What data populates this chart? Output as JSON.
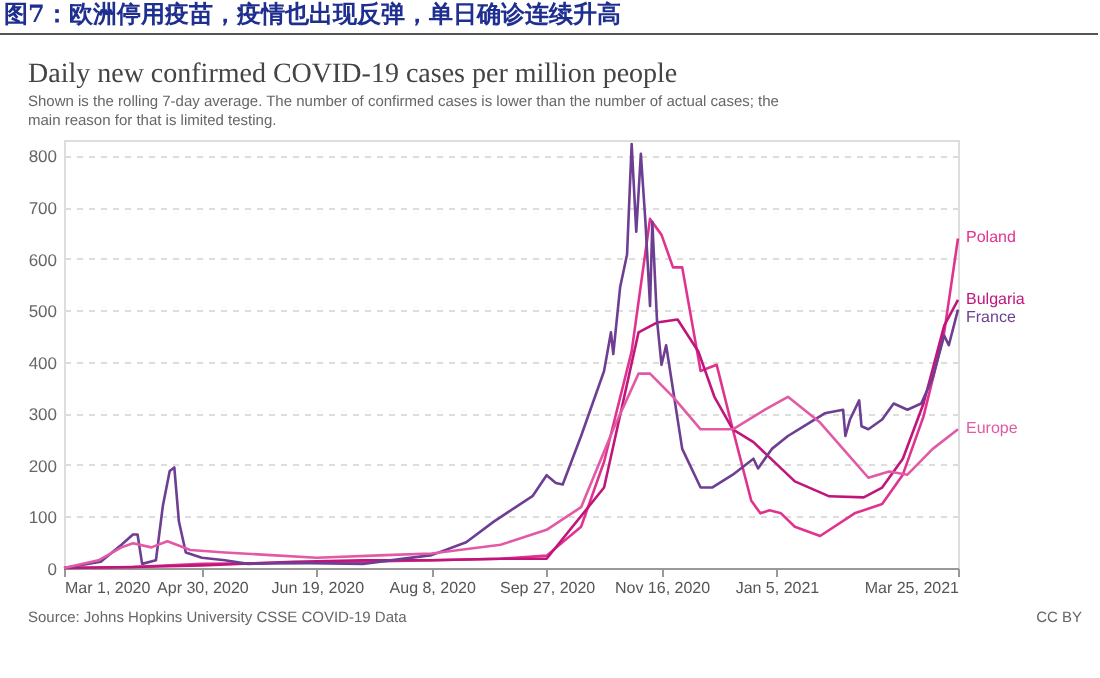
{
  "chart_data": {
    "type": "line",
    "title": "图7：欧洲停用疫苗，疫情也出现反弹，单日确诊连续升高",
    "subtitle": "Daily new confirmed COVID-19 cases per million people",
    "annotations": [
      "Shown is the rolling 7-day average. The number of confirmed cases is lower than the number of actual cases; the main reason for that is limited testing.",
      "Source: Johns Hopkins University CSSE COVID-19 Data",
      "CC BY"
    ],
    "xlim": [
      "2020-03-01",
      "2021-03-25"
    ],
    "xticks": [
      {
        "value": "2020-03-01",
        "label": "Mar 1, 2020"
      },
      {
        "value": "2020-04-30",
        "label": "Apr 30, 2020"
      },
      {
        "value": "2020-06-19",
        "label": "Jun 19, 2020"
      },
      {
        "value": "2020-08-08",
        "label": "Aug 8, 2020"
      },
      {
        "value": "2020-09-27",
        "label": "Sep 27, 2020"
      },
      {
        "value": "2020-11-16",
        "label": "Nov 16, 2020"
      },
      {
        "value": "2021-01-05",
        "label": "Jan 5, 2021"
      },
      {
        "value": "2021-03-25",
        "label": "Mar 25, 2021"
      }
    ],
    "ylim": [
      0,
      830
    ],
    "yticks": [
      0,
      100,
      200,
      300,
      400,
      500,
      600,
      700,
      800
    ],
    "grid": "y",
    "series": [
      {
        "name": "Poland",
        "color": "#e0338f",
        "x": [
          "2020-03-01",
          "2020-03-31",
          "2020-04-30",
          "2020-06-09",
          "2020-07-09",
          "2020-08-08",
          "2020-09-07",
          "2020-09-27",
          "2020-10-12",
          "2020-10-22",
          "2020-11-03",
          "2020-11-11",
          "2020-11-16",
          "2020-11-21",
          "2020-11-25",
          "2020-12-03",
          "2020-12-10",
          "2020-12-17",
          "2020-12-25",
          "2020-12-29",
          "2021-01-02",
          "2021-01-07",
          "2021-01-13",
          "2021-01-24",
          "2021-02-08",
          "2021-02-20",
          "2021-03-01",
          "2021-03-10",
          "2021-03-19",
          "2021-03-25"
        ],
        "values": [
          0,
          2,
          8,
          10,
          12,
          15,
          18,
          24,
          80,
          206,
          420,
          677,
          646,
          583,
          583,
          382,
          394,
          269,
          131,
          106,
          112,
          106,
          80,
          62,
          106,
          124,
          181,
          294,
          457,
          639
        ]
      },
      {
        "name": "Bulgaria",
        "color": "#c0157b",
        "x": [
          "2020-03-01",
          "2020-03-31",
          "2020-04-30",
          "2020-06-09",
          "2020-07-09",
          "2020-08-08",
          "2020-09-07",
          "2020-09-27",
          "2020-10-22",
          "2020-11-06",
          "2020-11-14",
          "2020-11-23",
          "2020-12-02",
          "2020-12-09",
          "2020-12-17",
          "2020-12-26",
          "2021-01-13",
          "2021-01-28",
          "2021-02-12",
          "2021-02-20",
          "2021-03-01",
          "2021-03-10",
          "2021-03-19",
          "2021-03-25"
        ],
        "values": [
          0,
          2,
          5,
          12,
          15,
          15,
          18,
          18,
          156,
          457,
          476,
          482,
          420,
          332,
          269,
          244,
          168,
          139,
          137,
          156,
          212,
          319,
          470,
          520
        ]
      },
      {
        "name": "France",
        "color": "#6d3e91",
        "x": [
          "2020-03-01",
          "2020-03-17",
          "2020-03-26",
          "2020-03-31",
          "2020-04-02",
          "2020-04-04",
          "2020-04-10",
          "2020-04-13",
          "2020-04-16",
          "2020-04-18",
          "2020-04-20",
          "2020-04-23",
          "2020-04-30",
          "2020-05-10",
          "2020-05-20",
          "2020-06-09",
          "2020-07-09",
          "2020-08-08",
          "2020-08-23",
          "2020-09-04",
          "2020-09-21",
          "2020-09-27",
          "2020-10-01",
          "2020-10-04",
          "2020-10-12",
          "2020-10-22",
          "2020-10-25",
          "2020-10-26",
          "2020-10-29",
          "2020-11-01",
          "2020-11-03",
          "2020-11-05",
          "2020-11-07",
          "2020-11-09",
          "2020-11-11",
          "2020-11-12",
          "2020-11-14",
          "2020-11-16",
          "2020-11-18",
          "2020-11-25",
          "2020-12-03",
          "2020-12-08",
          "2020-12-17",
          "2020-12-26",
          "2020-12-28",
          "2021-01-03",
          "2021-01-10",
          "2021-01-17",
          "2021-01-26",
          "2021-02-03",
          "2021-02-04",
          "2021-02-06",
          "2021-02-10",
          "2021-02-11",
          "2021-02-14",
          "2021-02-20",
          "2021-02-25",
          "2021-03-03",
          "2021-03-09",
          "2021-03-14",
          "2021-03-19",
          "2021-03-21",
          "2021-03-25"
        ],
        "values": [
          0,
          12,
          45,
          65,
          65,
          8,
          15,
          120,
          188,
          195,
          90,
          30,
          20,
          15,
          8,
          10,
          8,
          25,
          50,
          90,
          140,
          180,
          165,
          162,
          256,
          382,
          457,
          415,
          545,
          608,
          822,
          652,
          803,
          671,
          508,
          671,
          482,
          394,
          432,
          231,
          156,
          156,
          181,
          212,
          193,
          231,
          256,
          275,
          300,
          307,
          256,
          288,
          325,
          275,
          269,
          288,
          319,
          307,
          319,
          369,
          451,
          432,
          501
        ]
      },
      {
        "name": "Europe",
        "color": "#e25aa5",
        "x": [
          "2020-03-01",
          "2020-03-16",
          "2020-03-26",
          "2020-03-31",
          "2020-04-08",
          "2020-04-15",
          "2020-04-25",
          "2020-05-10",
          "2020-05-30",
          "2020-06-19",
          "2020-07-19",
          "2020-08-08",
          "2020-09-07",
          "2020-09-27",
          "2020-10-12",
          "2020-10-26",
          "2020-11-06",
          "2020-11-11",
          "2020-11-21",
          "2020-12-03",
          "2020-12-17",
          "2020-12-31",
          "2021-01-10",
          "2021-01-24",
          "2021-02-03",
          "2021-02-14",
          "2021-02-23",
          "2021-03-03",
          "2021-03-14",
          "2021-03-25"
        ],
        "values": [
          0,
          15,
          40,
          48,
          40,
          52,
          35,
          30,
          25,
          20,
          25,
          28,
          45,
          74,
          118,
          269,
          377,
          377,
          332,
          269,
          269,
          307,
          332,
          282,
          231,
          175,
          187,
          181,
          231,
          269
        ]
      }
    ]
  }
}
